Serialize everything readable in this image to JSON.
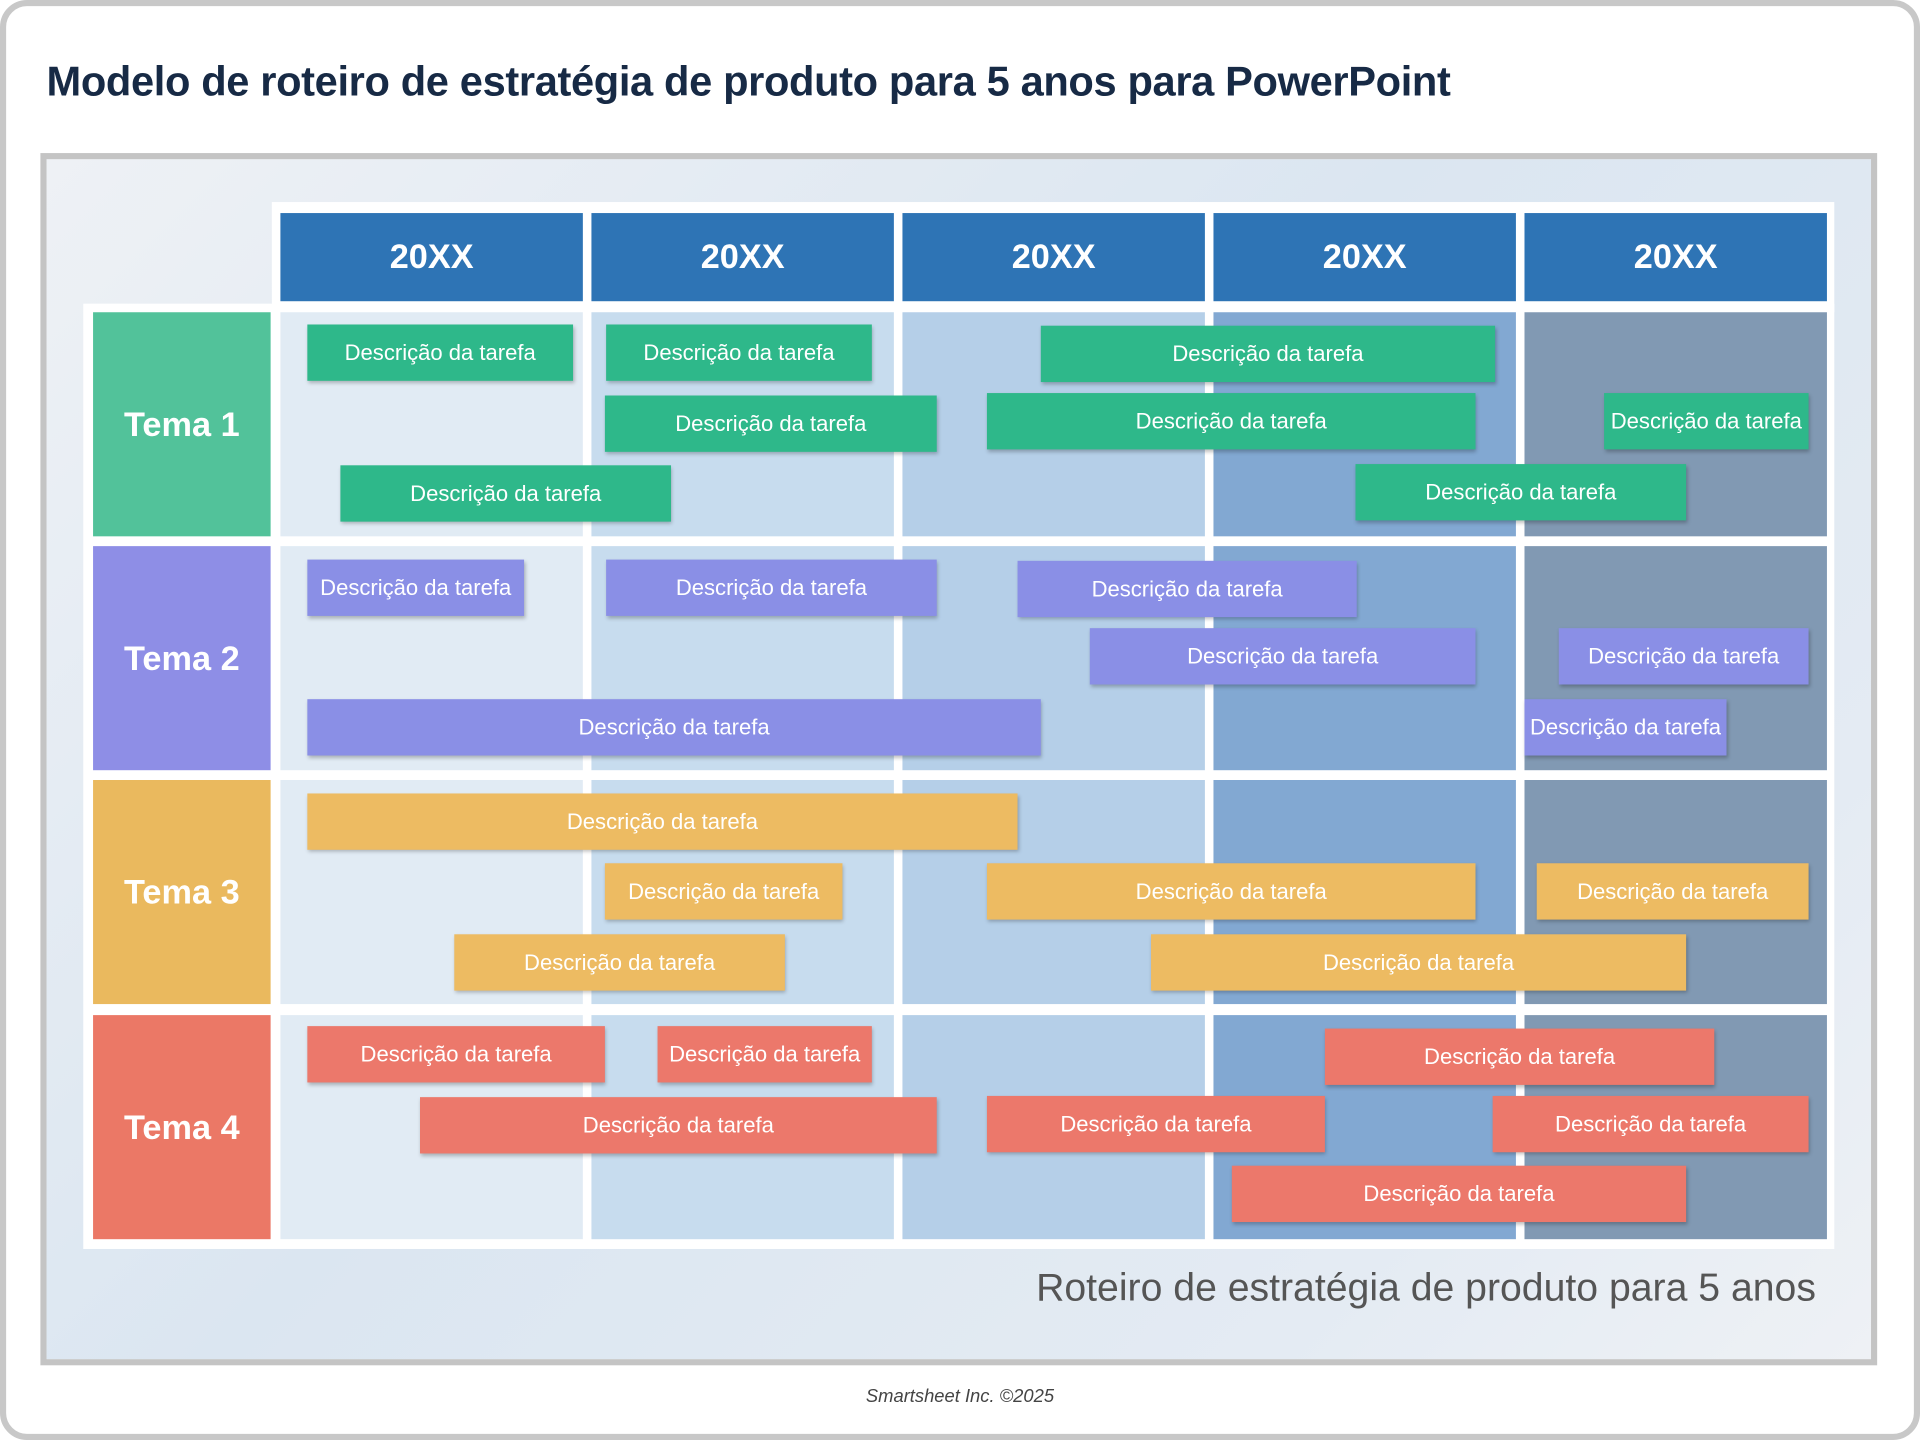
{
  "title": "Modelo de roteiro de estratégia de produto para 5 anos para PowerPoint",
  "years": [
    "20XX",
    "20XX",
    "20XX",
    "20XX",
    "20XX"
  ],
  "themes": [
    {
      "label": "Tema 1",
      "color": "#52c29a",
      "bar_color": "#2eb88a"
    },
    {
      "label": "Tema 2",
      "color": "#8e8ee6",
      "bar_color": "#8a8fe6"
    },
    {
      "label": "Tema 3",
      "color": "#eab95e",
      "bar_color": "#edbb62"
    },
    {
      "label": "Tema 4",
      "color": "#eb7866",
      "bar_color": "#ec786b"
    }
  ],
  "task_label": "Descrição da tarefa",
  "header_color": "#2e74b5",
  "subtitle": "Roteiro de estratégia de produto para 5 anos",
  "footer": "Smartsheet Inc. ©2025"
}
